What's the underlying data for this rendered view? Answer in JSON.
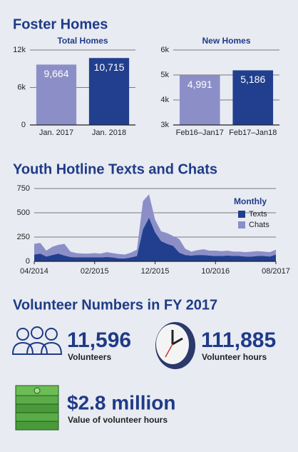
{
  "headings": [
    "Foster Homes",
    "Youth Hotline Texts and Chats",
    "Volunteer Numbers in FY 2017"
  ],
  "chart_data": [
    {
      "type": "bar",
      "title": "Total Homes",
      "categories": [
        "Jan. 2017",
        "Jan. 2018"
      ],
      "values": [
        9664,
        10715
      ],
      "value_labels": [
        "9,664",
        "10,715"
      ],
      "colors": [
        "#8c8fc7",
        "#213f8e"
      ],
      "ylim": [
        0,
        12000
      ],
      "yticks": [
        0,
        {
          "value": 6000,
          "label": "6k"
        },
        {
          "value": 12000,
          "label": "12k"
        }
      ],
      "grid": true
    },
    {
      "type": "bar",
      "title": "New Homes",
      "categories": [
        "Feb16–Jan17",
        "Feb17–Jan18"
      ],
      "values": [
        4991,
        5186
      ],
      "value_labels": [
        "4,991",
        "5,186"
      ],
      "colors": [
        "#8c8fc7",
        "#213f8e"
      ],
      "ylim": [
        3000,
        6000
      ],
      "yticks": [
        {
          "value": 3000,
          "label": "3k"
        },
        {
          "value": 4000,
          "label": "4k"
        },
        {
          "value": 5000,
          "label": "5k"
        },
        {
          "value": 6000,
          "label": "6k"
        }
      ],
      "grid": true
    },
    {
      "type": "area",
      "stacked": true,
      "legend_title": "Monthly",
      "categories": [
        "04/2014",
        null,
        null,
        null,
        null,
        null,
        null,
        null,
        null,
        null,
        "02/2015",
        null,
        null,
        null,
        null,
        null,
        null,
        null,
        null,
        null,
        "12/2015",
        null,
        null,
        null,
        null,
        null,
        null,
        null,
        null,
        null,
        "10/2016",
        null,
        null,
        null,
        null,
        null,
        null,
        null,
        null,
        null,
        "08/2017"
      ],
      "series": [
        {
          "name": "Texts",
          "color": "#213f8e",
          "values": [
            70,
            80,
            50,
            65,
            80,
            60,
            45,
            40,
            40,
            40,
            40,
            40,
            45,
            40,
            30,
            30,
            40,
            55,
            330,
            450,
            300,
            210,
            180,
            160,
            90,
            65,
            60,
            65,
            65,
            60,
            55,
            55,
            60,
            55,
            55,
            50,
            50,
            55,
            55,
            50,
            70
          ]
        },
        {
          "name": "Chats",
          "color": "#8c8fc7",
          "values": [
            110,
            110,
            60,
            85,
            90,
            120,
            55,
            45,
            40,
            40,
            45,
            40,
            50,
            45,
            45,
            40,
            50,
            65,
            290,
            240,
            130,
            100,
            110,
            100,
            140,
            65,
            40,
            50,
            60,
            50,
            55,
            50,
            50,
            45,
            45,
            45,
            50,
            50,
            45,
            45,
            50
          ]
        }
      ],
      "ylim": [
        0,
        750
      ],
      "yticks": [
        0,
        250,
        500,
        750
      ],
      "grid": true
    }
  ],
  "stats": [
    {
      "value": "11,596",
      "label": "Volunteers"
    },
    {
      "value": "111,885",
      "label": "Volunteer hours"
    },
    {
      "value": "$2.8 million",
      "label": "Value of volunteer hours"
    }
  ]
}
